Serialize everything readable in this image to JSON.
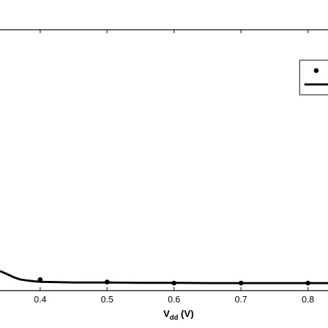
{
  "chart_data": {
    "type": "line",
    "xlabel_main": "V",
    "xlabel_sub": "dd",
    "xlabel_unit": " (V)",
    "xlim": [
      0.34,
      0.83
    ],
    "ylim": [
      0,
      1
    ],
    "xticks": [
      {
        "value": 0.4,
        "label": "0.4"
      },
      {
        "value": 0.5,
        "label": "0.5"
      },
      {
        "value": 0.6,
        "label": "0.6"
      },
      {
        "value": 0.7,
        "label": "0.7"
      },
      {
        "value": 0.8,
        "label": "0.8"
      }
    ],
    "series": [
      {
        "kind": "markers",
        "color": "#000000",
        "x": [
          0.4,
          0.5,
          0.6,
          0.7,
          0.8
        ],
        "y": [
          0.042,
          0.033,
          0.029,
          0.029,
          0.029
        ]
      },
      {
        "kind": "line",
        "color": "#000000",
        "x": [
          0.34,
          0.35,
          0.36,
          0.37,
          0.38,
          0.39,
          0.4,
          0.42,
          0.45,
          0.5,
          0.55,
          0.6,
          0.65,
          0.7,
          0.75,
          0.8,
          0.83
        ],
        "y": [
          0.075,
          0.064,
          0.052,
          0.043,
          0.039,
          0.036,
          0.034,
          0.033,
          0.031,
          0.031,
          0.03,
          0.03,
          0.029,
          0.029,
          0.029,
          0.029,
          0.029
        ]
      }
    ],
    "legend": {
      "position": "top-right",
      "entries": [
        {
          "kind": "marker"
        },
        {
          "kind": "line"
        }
      ]
    }
  }
}
